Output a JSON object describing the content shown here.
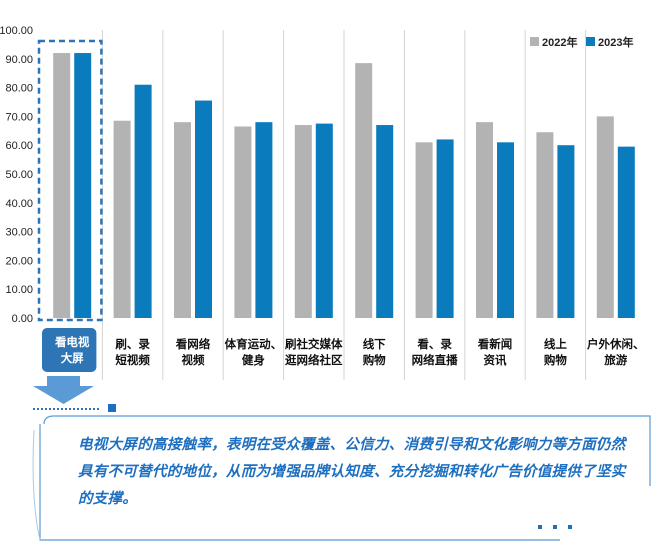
{
  "chart_data": {
    "type": "bar",
    "categories": [
      "看电视\n大屏",
      "刷、录\n短视频",
      "看网络\n视频",
      "体育运动、\n健身",
      "刷社交媒体\n逛网络社区",
      "线下\n购物",
      "看、录\n网络直播",
      "看新闻\n资讯",
      "线上\n购物",
      "户外休闲、\n旅游"
    ],
    "series": [
      {
        "name": "2022年",
        "values": [
          92.0,
          68.5,
          68.0,
          66.5,
          67.0,
          88.5,
          61.0,
          68.0,
          64.5,
          70.0
        ]
      },
      {
        "name": "2023年",
        "values": [
          92.0,
          81.0,
          75.5,
          68.0,
          67.5,
          67.0,
          62.0,
          61.0,
          60.0,
          59.5
        ]
      }
    ],
    "yticks": [
      "0.00",
      "10.00",
      "20.00",
      "30.00",
      "40.00",
      "50.00",
      "60.00",
      "70.00",
      "80.00",
      "90.00",
      "100.00"
    ],
    "ylim": [
      0,
      100
    ],
    "legend_position": "top-right",
    "grid": false,
    "highlighted_category_index": 0,
    "colors": {
      "2022年": "#b3b3b3",
      "2023年": "#0a7bbd",
      "highlight": "#2e75b6",
      "dashed_frame": "#2e75b6",
      "divider": "#d4d4d4"
    }
  },
  "note": {
    "text": "电视大屏的高接触率，表明在受众覆盖、公信力、消费引导和文化影响力等方面仍然具有不可替代的地位，从而为增强品牌认知度、充分挖掘和转化广告价值提供了坚实的支撑。",
    "color": "#1f6fc0"
  }
}
